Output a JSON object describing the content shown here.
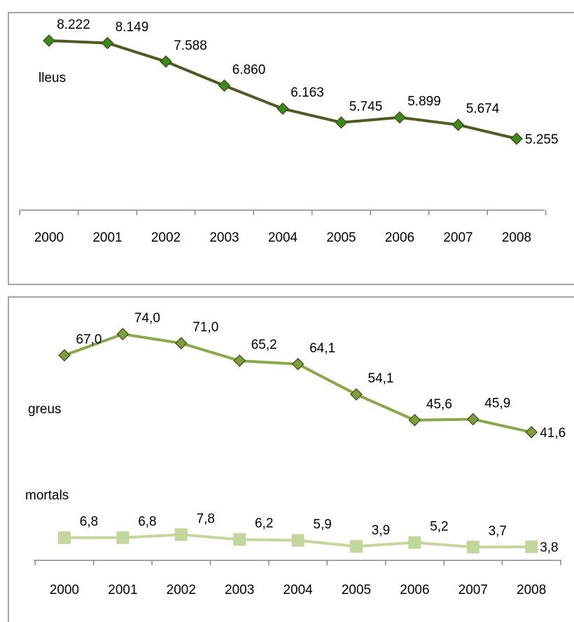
{
  "chart_data": [
    {
      "type": "line",
      "categories": [
        "2000",
        "2001",
        "2002",
        "2003",
        "2004",
        "2005",
        "2006",
        "2007",
        "2008"
      ],
      "series": [
        {
          "name": "lleus",
          "color": "#4f5b22",
          "marker_color": "#3d8a1c",
          "marker": "diamond",
          "values": [
            8222,
            8149,
            7588,
            6860,
            6163,
            5745,
            5899,
            5674,
            5255
          ],
          "value_labels": [
            "8.222",
            "8.149",
            "7.588",
            "6.860",
            "6.163",
            "5.745",
            "5.899",
            "5.674",
            "5.255"
          ]
        }
      ]
    },
    {
      "type": "line",
      "categories": [
        "2000",
        "2001",
        "2002",
        "2003",
        "2004",
        "2005",
        "2006",
        "2007",
        "2008"
      ],
      "series": [
        {
          "name": "greus",
          "color": "#8aa84a",
          "marker_color": "#7e9e3e",
          "marker": "diamond",
          "values": [
            67.0,
            74.0,
            71.0,
            65.2,
            64.1,
            54.1,
            45.6,
            45.9,
            41.6
          ],
          "value_labels": [
            "67,0",
            "74,0",
            "71,0",
            "65,2",
            "64,1",
            "54,1",
            "45,6",
            "45,9",
            "41,6"
          ]
        },
        {
          "name": "mortals",
          "color": "#c3d69b",
          "marker_color": "#c3d69b",
          "marker": "square",
          "values": [
            6.8,
            6.8,
            7.8,
            6.2,
            5.9,
            3.9,
            5.2,
            3.7,
            3.8
          ],
          "value_labels": [
            "6,8",
            "6,8",
            "7,8",
            "6,2",
            "5,9",
            "3,9",
            "5,2",
            "3,7",
            "3,8"
          ]
        }
      ]
    }
  ]
}
